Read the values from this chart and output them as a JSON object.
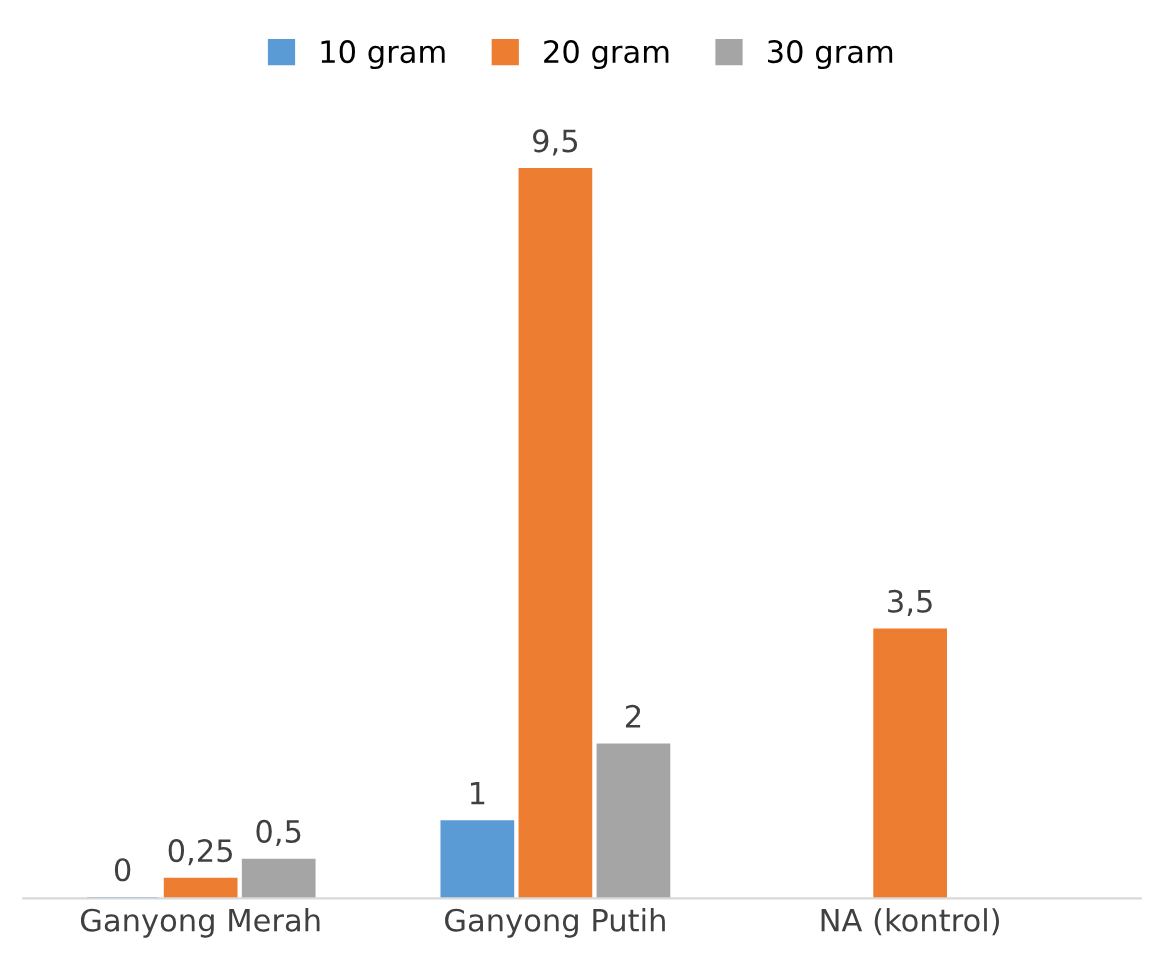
{
  "chart_data": {
    "type": "bar",
    "categories": [
      "Ganyong Merah",
      "Ganyong Putih",
      "NA (kontrol)"
    ],
    "series": [
      {
        "name": "10 gram",
        "color": "#5b9bd5",
        "values": [
          0,
          1,
          null
        ],
        "value_labels": [
          "0",
          "1",
          null
        ]
      },
      {
        "name": "20 gram",
        "color": "#ed7d31",
        "values": [
          0.25,
          9.5,
          3.5
        ],
        "value_labels": [
          "0,25",
          "9,5",
          "3,5"
        ]
      },
      {
        "name": "30 gram",
        "color": "#a5a5a5",
        "values": [
          0.5,
          2,
          null
        ],
        "value_labels": [
          "0,5",
          "2",
          null
        ]
      }
    ],
    "legend": "top",
    "grid": false
  }
}
